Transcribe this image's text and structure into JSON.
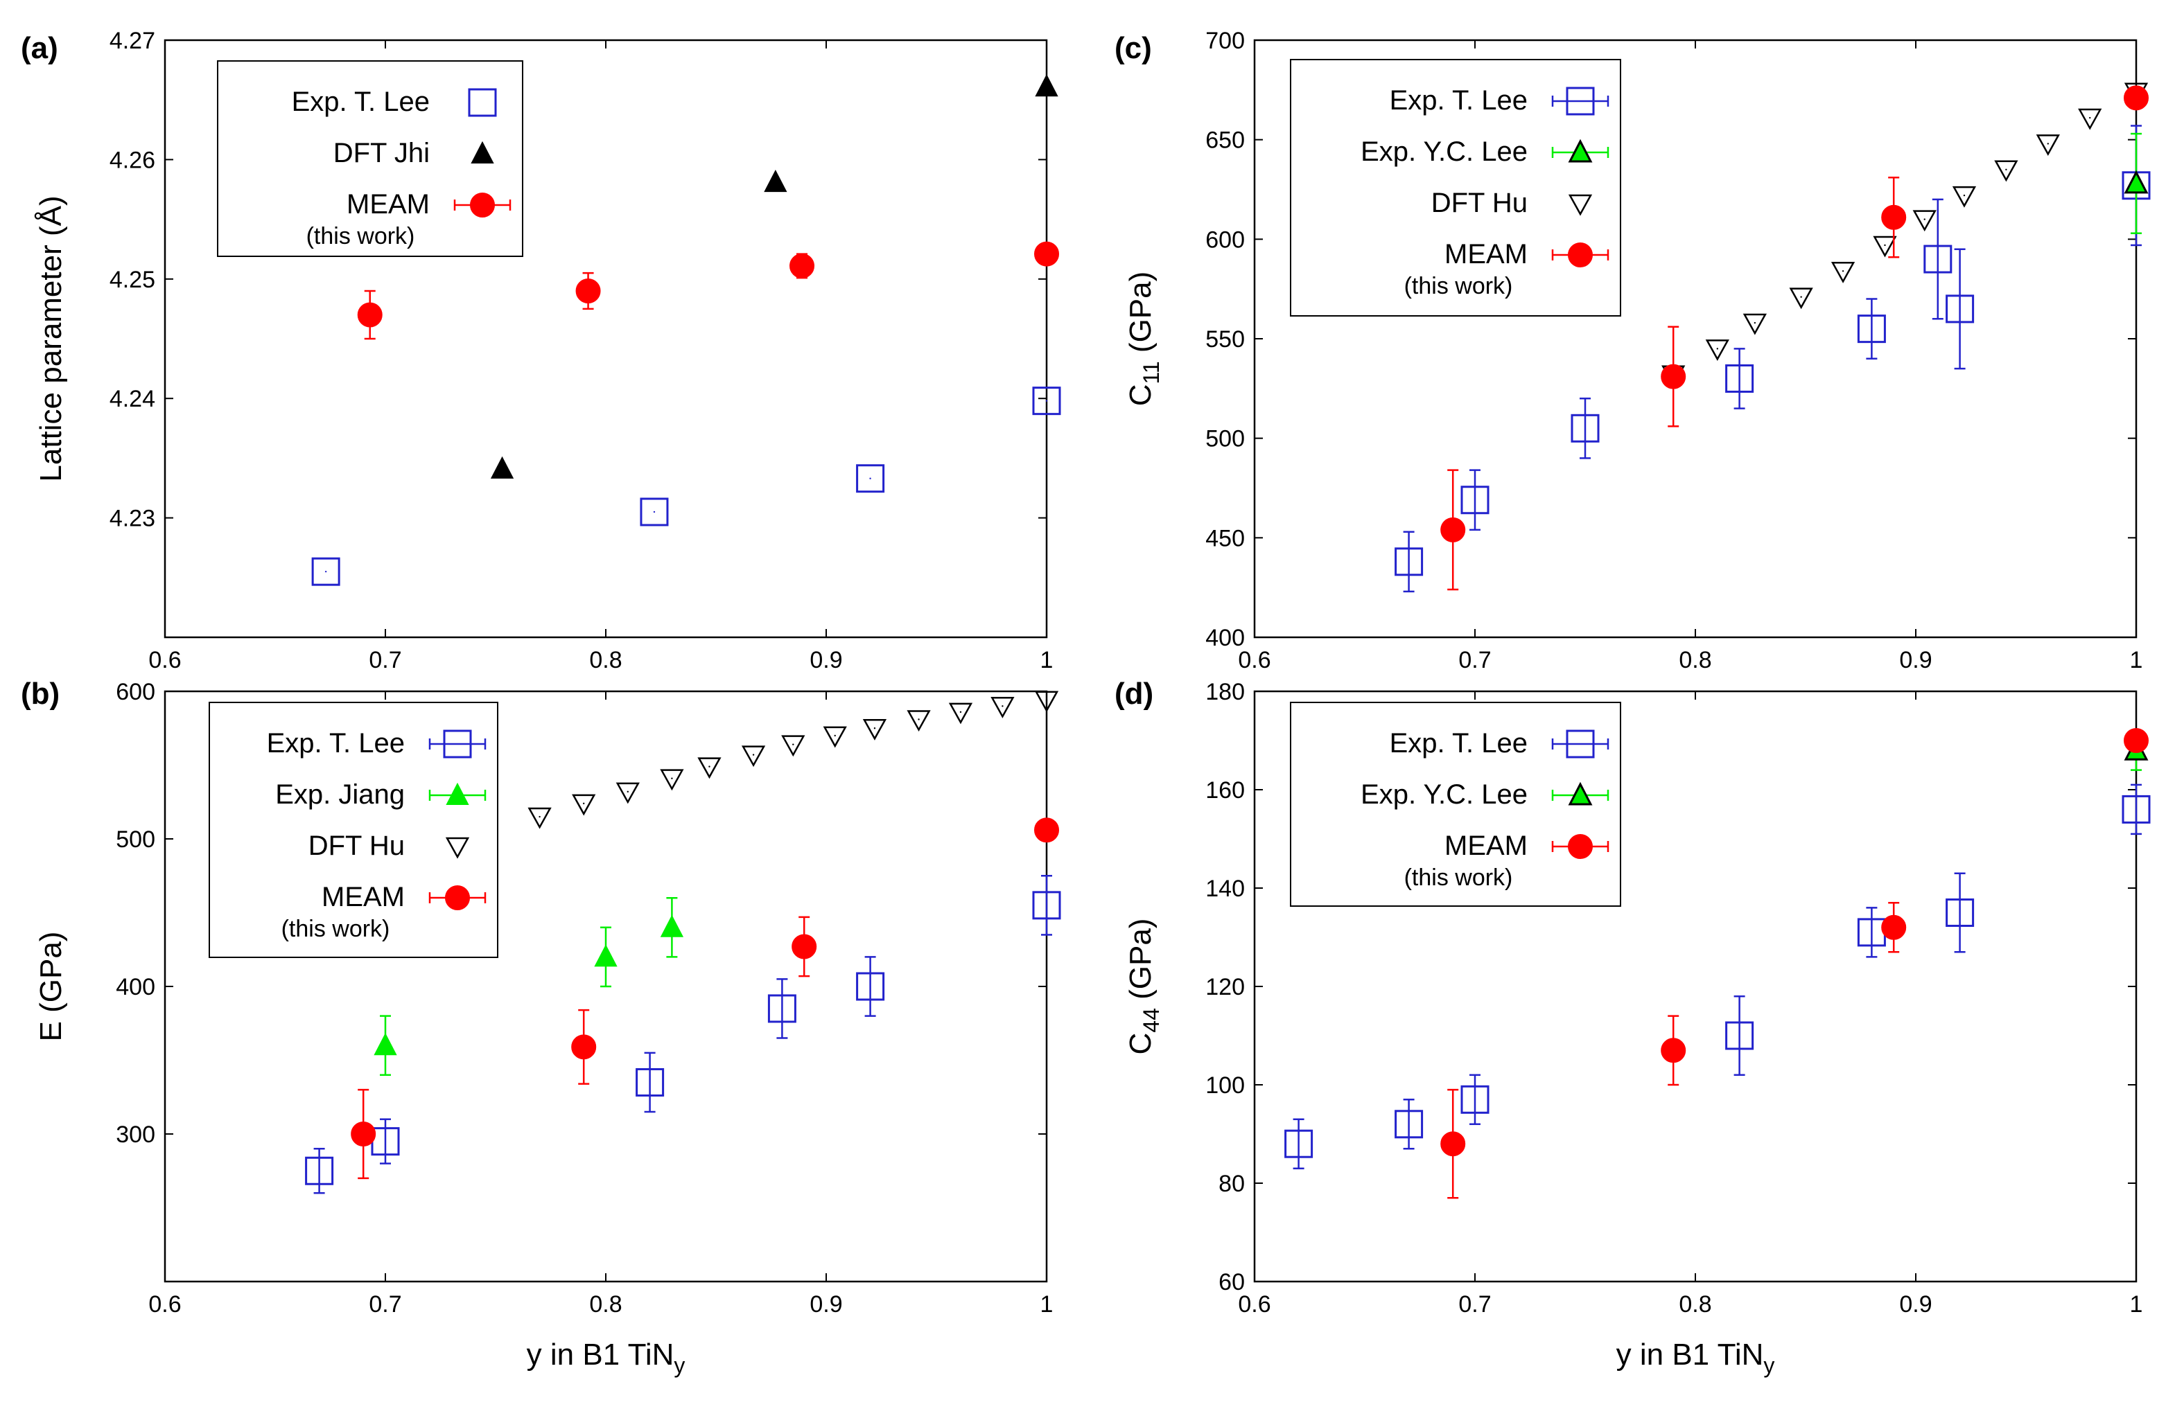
{
  "colors": {
    "t_lee": "#2222cc",
    "jiang": "#00ee00",
    "yc_lee": "#00ee00",
    "dft": "#000000",
    "meam": "#ff0000"
  },
  "chart_data": [
    {
      "panel": "(a)",
      "type": "scatter",
      "xlabel": "",
      "ylabel": "Lattice parameter (Å)",
      "xlim": [
        0.6,
        1.0
      ],
      "ylim": [
        4.22,
        4.27
      ],
      "xticks": [
        "0.6",
        "0.7",
        "0.8",
        "0.9",
        "1"
      ],
      "yticks": [
        "4.23",
        "4.24",
        "4.25",
        "4.26",
        "4.27"
      ],
      "legend": {
        "position": "top-left",
        "entries": [
          {
            "name": "Exp. T. Lee",
            "marker": "square",
            "errorbar": false
          },
          {
            "name": "DFT Jhi",
            "marker": "triangle-up-filled",
            "errorbar": false
          },
          {
            "name": "MEAM",
            "sub": "(this work)",
            "marker": "circle-filled",
            "errorbar": true
          }
        ]
      },
      "series": [
        {
          "name": "Exp. T. Lee",
          "marker": "square",
          "color": "#2222cc",
          "x": [
            0.673,
            0.822,
            0.92,
            1.0
          ],
          "y": [
            4.2255,
            4.2305,
            4.2333,
            4.2398
          ]
        },
        {
          "name": "DFT Jhi",
          "marker": "triangle-up-filled",
          "color": "#000000",
          "x": [
            0.753,
            0.877,
            1.0
          ],
          "y": [
            4.2341,
            4.2581,
            4.2661
          ]
        },
        {
          "name": "MEAM",
          "marker": "circle-filled",
          "color": "#ff0000",
          "x": [
            0.693,
            0.792,
            0.889,
            1.0
          ],
          "y": [
            4.247,
            4.249,
            4.2511,
            4.2521
          ],
          "err": [
            0.002,
            0.0015,
            0.001,
            0
          ]
        }
      ]
    },
    {
      "panel": "(b)",
      "type": "scatter",
      "xlabel": "y in B1 TiN",
      "xlabel_sub": "y",
      "ylabel": "E (GPa)",
      "xlim": [
        0.6,
        1.0
      ],
      "ylim": [
        200,
        600
      ],
      "xticks": [
        "0.6",
        "0.7",
        "0.8",
        "0.9",
        "1"
      ],
      "yticks": [
        "300",
        "400",
        "500",
        "600"
      ],
      "legend": {
        "position": "top-left",
        "entries": [
          {
            "name": "Exp. T. Lee",
            "marker": "square",
            "errorbar": true
          },
          {
            "name": "Exp. Jiang",
            "marker": "triangle-up-filled",
            "errorbar": true
          },
          {
            "name": "DFT Hu",
            "marker": "triangle-down",
            "errorbar": false
          },
          {
            "name": "MEAM",
            "sub": "(this work)",
            "marker": "circle-filled",
            "errorbar": true
          }
        ]
      },
      "series": [
        {
          "name": "Exp. T. Lee",
          "marker": "square",
          "color": "#2222cc",
          "x": [
            0.67,
            0.7,
            0.82,
            0.88,
            0.92,
            1.0
          ],
          "y": [
            275,
            295,
            335,
            385,
            400,
            455
          ],
          "err": [
            15,
            15,
            20,
            20,
            20,
            20
          ]
        },
        {
          "name": "Exp. Jiang",
          "marker": "triangle-up-filled",
          "color": "#00ee00",
          "x": [
            0.7,
            0.8,
            0.83
          ],
          "y": [
            360,
            420,
            440
          ],
          "err": [
            20,
            20,
            20
          ]
        },
        {
          "name": "DFT Hu",
          "marker": "triangle-down",
          "color": "#000000",
          "x": [
            0.77,
            0.79,
            0.81,
            0.83,
            0.847,
            0.867,
            0.885,
            0.904,
            0.922,
            0.942,
            0.961,
            0.98,
            1.0
          ],
          "y": [
            515,
            524,
            532,
            541,
            549,
            557,
            564,
            570,
            575,
            581,
            586,
            590,
            594
          ]
        },
        {
          "name": "MEAM",
          "marker": "circle-filled",
          "color": "#ff0000",
          "x": [
            0.69,
            0.79,
            0.89,
            1.0
          ],
          "y": [
            300,
            359,
            427,
            506
          ],
          "err": [
            30,
            25,
            20,
            0
          ]
        }
      ]
    },
    {
      "panel": "(c)",
      "type": "scatter",
      "xlabel": "",
      "ylabel": "C",
      "ylabel_sub": "11",
      "ylabel_tail": " (GPa)",
      "xlim": [
        0.6,
        1.0
      ],
      "ylim": [
        400,
        700
      ],
      "xticks": [
        "0.6",
        "0.7",
        "0.8",
        "0.9",
        "1"
      ],
      "yticks": [
        "400",
        "450",
        "500",
        "550",
        "600",
        "650",
        "700"
      ],
      "legend": {
        "position": "top-left",
        "entries": [
          {
            "name": "Exp. T. Lee",
            "marker": "square",
            "errorbar": true
          },
          {
            "name": "Exp. Y.C. Lee",
            "marker": "triangle-up-green",
            "errorbar": true
          },
          {
            "name": "DFT Hu",
            "marker": "triangle-down",
            "errorbar": false
          },
          {
            "name": "MEAM",
            "sub": "(this work)",
            "marker": "circle-filled",
            "errorbar": true
          }
        ]
      },
      "series": [
        {
          "name": "Exp. T. Lee",
          "marker": "square",
          "color": "#2222cc",
          "x": [
            0.67,
            0.7,
            0.75,
            0.82,
            0.88,
            0.91,
            0.92,
            1.0
          ],
          "y": [
            438,
            469,
            505,
            530,
            555,
            590,
            565,
            627
          ],
          "err": [
            15,
            15,
            15,
            15,
            15,
            30,
            30,
            30
          ]
        },
        {
          "name": "Exp. Y.C. Lee",
          "marker": "triangle-up-green",
          "color": "#00ee00",
          "x": [
            1.0
          ],
          "y": [
            628
          ],
          "err": [
            25
          ]
        },
        {
          "name": "DFT Hu",
          "marker": "triangle-down",
          "color": "#000000",
          "x": [
            0.79,
            0.81,
            0.827,
            0.848,
            0.867,
            0.886,
            0.904,
            0.922,
            0.941,
            0.96,
            0.979,
            1.0
          ],
          "y": [
            532,
            545,
            558,
            571,
            584,
            597,
            610,
            622,
            635,
            648,
            661,
            674
          ]
        },
        {
          "name": "MEAM",
          "marker": "circle-filled",
          "color": "#ff0000",
          "x": [
            0.69,
            0.79,
            0.89,
            1.0
          ],
          "y": [
            454,
            531,
            611,
            671
          ],
          "err": [
            30,
            25,
            20,
            0
          ]
        }
      ]
    },
    {
      "panel": "(d)",
      "type": "scatter",
      "xlabel": "y in B1 TiN",
      "xlabel_sub": "y",
      "ylabel": "C",
      "ylabel_sub": "44",
      "ylabel_tail": " (GPa)",
      "xlim": [
        0.6,
        1.0
      ],
      "ylim": [
        60,
        180
      ],
      "xticks": [
        "0.6",
        "0.7",
        "0.8",
        "0.9",
        "1"
      ],
      "yticks": [
        "60",
        "80",
        "100",
        "120",
        "140",
        "160",
        "180"
      ],
      "legend": {
        "position": "top-left",
        "entries": [
          {
            "name": "Exp. T. Lee",
            "marker": "square",
            "errorbar": true
          },
          {
            "name": "Exp. Y.C. Lee",
            "marker": "triangle-up-green",
            "errorbar": true
          },
          {
            "name": "MEAM",
            "sub": "(this work)",
            "marker": "circle-filled",
            "errorbar": true
          }
        ]
      },
      "series": [
        {
          "name": "Exp. T. Lee",
          "marker": "square",
          "color": "#2222cc",
          "x": [
            0.62,
            0.67,
            0.7,
            0.82,
            0.88,
            0.92,
            1.0
          ],
          "y": [
            88,
            92,
            97,
            110,
            131,
            135,
            156
          ],
          "err": [
            5,
            5,
            5,
            8,
            5,
            8,
            5
          ]
        },
        {
          "name": "Exp. Y.C. Lee",
          "marker": "triangle-up-green",
          "color": "#00ee00",
          "x": [
            1.0
          ],
          "y": [
            168
          ],
          "err": [
            4
          ]
        },
        {
          "name": "MEAM",
          "marker": "circle-filled",
          "color": "#ff0000",
          "x": [
            0.69,
            0.79,
            0.89,
            1.0
          ],
          "y": [
            88,
            107,
            132,
            170
          ],
          "err": [
            11,
            7,
            5,
            0
          ]
        }
      ]
    }
  ]
}
